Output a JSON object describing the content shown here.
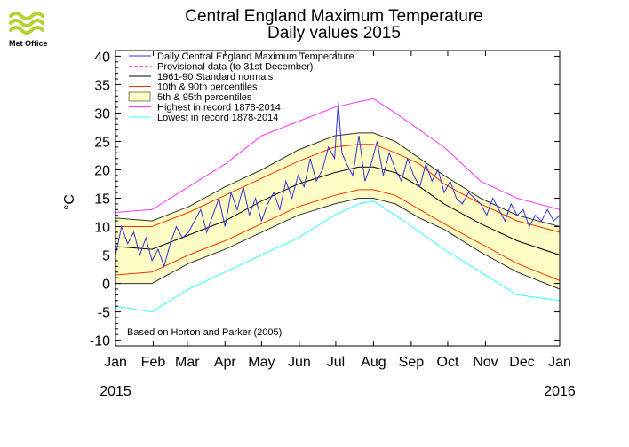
{
  "brand": {
    "name": "Met Office",
    "logo": "met-office-wave-logo",
    "logo_color": "#b5d334"
  },
  "chart_data": {
    "type": "line",
    "title": "Central England Maximum Temperature",
    "subtitle": "Daily values 2015",
    "ylabel": "°C",
    "xlabel": "",
    "ylim": [
      -11,
      41
    ],
    "yticks": [
      -10,
      -5,
      0,
      5,
      10,
      15,
      20,
      25,
      30,
      35,
      40
    ],
    "xlim": [
      0,
      365
    ],
    "xticks": [
      {
        "label": "Jan",
        "day": 0
      },
      {
        "label": "Feb",
        "day": 31
      },
      {
        "label": "Mar",
        "day": 59
      },
      {
        "label": "Apr",
        "day": 90
      },
      {
        "label": "May",
        "day": 120
      },
      {
        "label": "Jun",
        "day": 151
      },
      {
        "label": "Jul",
        "day": 181
      },
      {
        "label": "Aug",
        "day": 212
      },
      {
        "label": "Sep",
        "day": 243
      },
      {
        "label": "Oct",
        "day": 273
      },
      {
        "label": "Nov",
        "day": 304
      },
      {
        "label": "Dec",
        "day": 334
      },
      {
        "label": "Jan",
        "day": 365
      }
    ],
    "year_labels": {
      "start": "2015",
      "end": "2016"
    },
    "note": "Based on Horton and Parker (2005)",
    "legend_position": "top-left",
    "legend": [
      {
        "label": "Daily Central England Maximum Temperature",
        "color": "#3333dd",
        "style": "line"
      },
      {
        "label": "Provisional data (to 31st December)",
        "color": "#ff66cc",
        "style": "dashed"
      },
      {
        "label": "1961-90 Standard normals",
        "color": "#000000",
        "style": "line"
      },
      {
        "label": "10th & 90th percentiles",
        "color": "#ff3300",
        "style": "line"
      },
      {
        "label": "5th & 95th percentiles",
        "color": "#fdfcc4",
        "style": "band"
      },
      {
        "label": "Highest in record 1878-2014",
        "color": "#ff33ff",
        "style": "line"
      },
      {
        "label": "Lowest in record 1878-2014",
        "color": "#33ffff",
        "style": "line"
      }
    ],
    "series": [
      {
        "name": "Highest in record 1878-2014",
        "days": [
          0,
          30,
          60,
          90,
          120,
          150,
          180,
          200,
          212,
          230,
          250,
          270,
          300,
          330,
          365
        ],
        "values": [
          12.5,
          13,
          17,
          21,
          26,
          28.5,
          31,
          32,
          32.5,
          30,
          27,
          24,
          18,
          15,
          13
        ]
      },
      {
        "name": "95th percentile",
        "days": [
          0,
          30,
          60,
          90,
          120,
          150,
          180,
          200,
          212,
          230,
          250,
          270,
          300,
          330,
          365
        ],
        "values": [
          11.5,
          11,
          13.5,
          17,
          20,
          23.5,
          26,
          26.5,
          26.5,
          25,
          22,
          19,
          15,
          12,
          10
        ]
      },
      {
        "name": "90th percentile",
        "days": [
          0,
          30,
          60,
          90,
          120,
          150,
          180,
          200,
          212,
          230,
          250,
          270,
          300,
          330,
          365
        ],
        "values": [
          10,
          10,
          12.5,
          15.5,
          18.5,
          21.5,
          24,
          24.5,
          24.5,
          23,
          21,
          17.5,
          14,
          11,
          9
        ]
      },
      {
        "name": "1961-90 Standard normals",
        "days": [
          0,
          30,
          60,
          90,
          120,
          150,
          180,
          200,
          212,
          230,
          250,
          270,
          300,
          330,
          365
        ],
        "values": [
          6.5,
          6,
          8.5,
          11,
          14.5,
          17.5,
          19.5,
          20.5,
          20.5,
          19.5,
          17,
          14,
          10.5,
          7.5,
          5
        ]
      },
      {
        "name": "10th percentile",
        "days": [
          0,
          30,
          60,
          90,
          120,
          150,
          180,
          200,
          212,
          230,
          250,
          270,
          300,
          330,
          365
        ],
        "values": [
          1.5,
          2,
          5,
          7.5,
          10.5,
          13.5,
          15.5,
          16.5,
          16.5,
          15.5,
          13,
          10.5,
          7,
          3.5,
          0.5
        ]
      },
      {
        "name": "5th percentile",
        "days": [
          0,
          30,
          60,
          90,
          120,
          150,
          180,
          200,
          212,
          230,
          250,
          270,
          300,
          330,
          365
        ],
        "values": [
          0,
          0,
          3.5,
          6,
          9,
          12,
          14,
          15,
          15,
          14,
          11.5,
          9.5,
          5.5,
          2,
          -1
        ]
      },
      {
        "name": "Lowest in record 1878-2014",
        "days": [
          0,
          30,
          60,
          90,
          120,
          150,
          180,
          200,
          212,
          230,
          250,
          270,
          300,
          330,
          365
        ],
        "values": [
          -4,
          -5,
          -1,
          2,
          5,
          8,
          12,
          14,
          14.5,
          12,
          9,
          6,
          2,
          -2,
          -3
        ]
      },
      {
        "name": "Daily Central England Maximum Temperature",
        "days": [
          0,
          5,
          10,
          15,
          20,
          25,
          30,
          35,
          40,
          45,
          50,
          55,
          60,
          65,
          70,
          75,
          80,
          85,
          90,
          95,
          100,
          105,
          110,
          115,
          120,
          125,
          130,
          135,
          140,
          145,
          150,
          155,
          160,
          165,
          170,
          175,
          180,
          183,
          186,
          190,
          195,
          200,
          205,
          210,
          215,
          220,
          225,
          230,
          235,
          240,
          245,
          250,
          255,
          260,
          265,
          270,
          275,
          280,
          285,
          290,
          295,
          300,
          305,
          310,
          315,
          320,
          325,
          330,
          335,
          340,
          345,
          350,
          355,
          360,
          365
        ],
        "values": [
          5,
          10,
          7,
          9,
          5,
          8,
          4,
          6,
          3,
          7,
          10,
          8,
          9,
          11,
          13,
          9,
          12,
          15,
          10,
          16,
          13,
          17,
          12,
          15,
          11,
          14,
          16,
          13,
          18,
          15,
          19,
          17,
          22,
          18,
          20,
          24,
          22,
          32,
          23,
          21,
          19,
          26,
          18,
          21,
          25,
          19,
          23,
          20,
          18,
          22,
          19,
          17,
          21,
          18,
          20,
          16,
          18,
          15,
          14,
          16,
          15,
          14,
          12,
          15,
          13,
          11,
          14,
          12,
          13,
          10,
          12,
          11,
          13,
          11,
          12
        ]
      }
    ]
  }
}
